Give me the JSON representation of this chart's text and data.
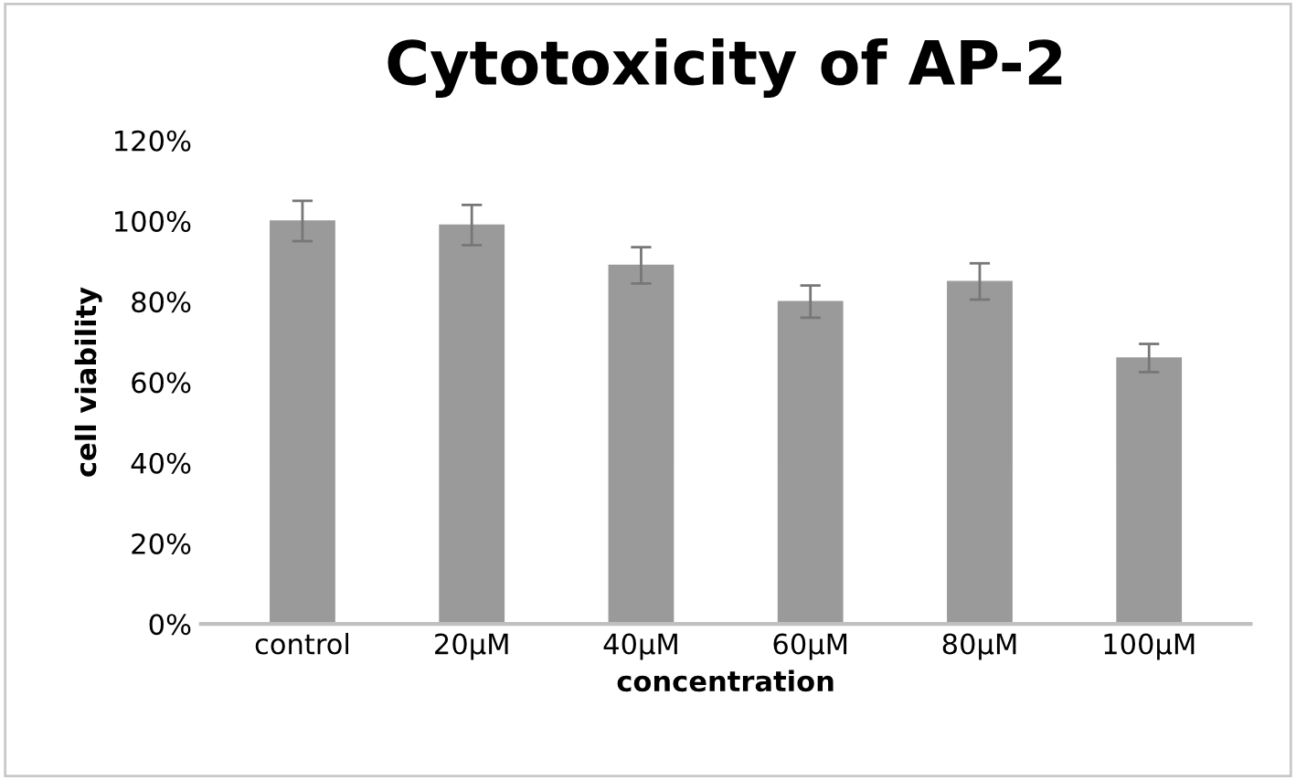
{
  "chart_data": {
    "type": "bar",
    "title": "Cytotoxicity of AP-2",
    "xlabel": "concentration",
    "ylabel": "cell viability",
    "categories": [
      "control",
      "20μM",
      "40μM",
      "60μM",
      "80μM",
      "100μM"
    ],
    "values": [
      100,
      99,
      89,
      80,
      85,
      66
    ],
    "errors": [
      5,
      5,
      4.5,
      4,
      4.5,
      3.5
    ],
    "color": "#9a9a9a",
    "ylim": [
      0,
      120
    ],
    "yticks": [
      {
        "value": 0,
        "label": "0%"
      },
      {
        "value": 20,
        "label": "20%"
      },
      {
        "value": 40,
        "label": "40%"
      },
      {
        "value": 60,
        "label": "60%"
      },
      {
        "value": 80,
        "label": "80%"
      },
      {
        "value": 100,
        "label": "100%"
      },
      {
        "value": 120,
        "label": "120%"
      }
    ],
    "grid": false,
    "legend": false
  }
}
